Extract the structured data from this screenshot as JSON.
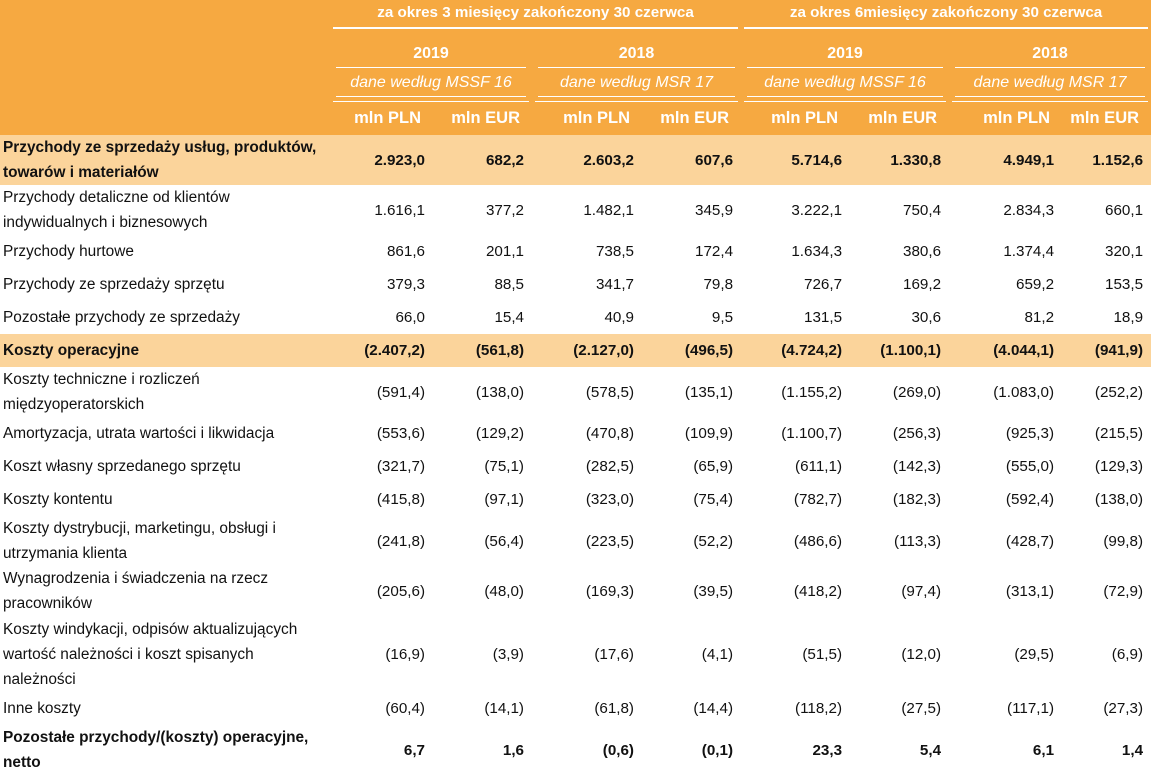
{
  "header": {
    "periods": [
      "za okres 3 miesięcy zakończony 30 czerwca",
      "za okres 6miesięcy zakończony 30 czerwca"
    ],
    "years": [
      {
        "year": "2019",
        "standard": "dane według MSSF 16"
      },
      {
        "year": "2018",
        "standard": "dane według MSR 17"
      },
      {
        "year": "2019",
        "standard": "dane według MSSF 16"
      },
      {
        "year": "2018",
        "standard": "dane według MSR 17"
      }
    ],
    "units": [
      "mln PLN",
      "mln EUR",
      "mln PLN",
      "mln EUR",
      "mln PLN",
      "mln EUR",
      "mln PLN",
      "mln EUR"
    ]
  },
  "rows": [
    {
      "label": "Przychody ze sprzedaży usług, produktów, towarów i materiałów",
      "values": [
        "2.923,0",
        "682,2",
        "2.603,2",
        "607,6",
        "5.714,6",
        "1.330,8",
        "4.949,1",
        "1.152,6"
      ]
    },
    {
      "label": "Przychody detaliczne od klientów indywidualnych i biznesowych",
      "values": [
        "1.616,1",
        "377,2",
        "1.482,1",
        "345,9",
        "3.222,1",
        "750,4",
        "2.834,3",
        "660,1"
      ]
    },
    {
      "label": "Przychody hurtowe",
      "values": [
        "861,6",
        "201,1",
        "738,5",
        "172,4",
        "1.634,3",
        "380,6",
        "1.374,4",
        "320,1"
      ]
    },
    {
      "label": "Przychody ze sprzedaży sprzętu",
      "values": [
        "379,3",
        "88,5",
        "341,7",
        "79,8",
        "726,7",
        "169,2",
        "659,2",
        "153,5"
      ]
    },
    {
      "label": "Pozostałe przychody ze sprzedaży",
      "values": [
        "66,0",
        "15,4",
        "40,9",
        "9,5",
        "131,5",
        "30,6",
        "81,2",
        "18,9"
      ]
    },
    {
      "label": "Koszty operacyjne",
      "values": [
        "(2.407,2)",
        "(561,8)",
        "(2.127,0)",
        "(496,5)",
        "(4.724,2)",
        "(1.100,1)",
        "(4.044,1)",
        "(941,9)"
      ]
    },
    {
      "label": "Koszty techniczne i rozliczeń międzyoperatorskich",
      "values": [
        "(591,4)",
        "(138,0)",
        "(578,5)",
        "(135,1)",
        "(1.155,2)",
        "(269,0)",
        "(1.083,0)",
        "(252,2)"
      ]
    },
    {
      "label": "Amortyzacja, utrata wartości i likwidacja",
      "values": [
        "(553,6)",
        "(129,2)",
        "(470,8)",
        "(109,9)",
        "(1.100,7)",
        "(256,3)",
        "(925,3)",
        "(215,5)"
      ]
    },
    {
      "label": "Koszt własny sprzedanego sprzętu",
      "values": [
        "(321,7)",
        "(75,1)",
        "(282,5)",
        "(65,9)",
        "(611,1)",
        "(142,3)",
        "(555,0)",
        "(129,3)"
      ]
    },
    {
      "label": "Koszty kontentu",
      "values": [
        "(415,8)",
        "(97,1)",
        "(323,0)",
        "(75,4)",
        "(782,7)",
        "(182,3)",
        "(592,4)",
        "(138,0)"
      ]
    },
    {
      "label": "Koszty dystrybucji, marketingu, obsługi i utrzymania klienta",
      "values": [
        "(241,8)",
        "(56,4)",
        "(223,5)",
        "(52,2)",
        "(486,6)",
        "(113,3)",
        "(428,7)",
        "(99,8)"
      ]
    },
    {
      "label": "Wynagrodzenia i świadczenia na rzecz pracowników",
      "values": [
        "(205,6)",
        "(48,0)",
        "(169,3)",
        "(39,5)",
        "(418,2)",
        "(97,4)",
        "(313,1)",
        "(72,9)"
      ]
    },
    {
      "label": "Koszty windykacji, odpisów aktualizujących wartość należności i koszt spisanych należności",
      "values": [
        "(16,9)",
        "(3,9)",
        "(17,6)",
        "(4,1)",
        "(51,5)",
        "(12,0)",
        "(29,5)",
        "(6,9)"
      ]
    },
    {
      "label": "Inne koszty",
      "values": [
        "(60,4)",
        "(14,1)",
        "(61,8)",
        "(14,4)",
        "(118,2)",
        "(27,5)",
        "(117,1)",
        "(27,3)"
      ]
    },
    {
      "label": "Pozostałe przychody/(koszty) operacyjne, netto",
      "values": [
        "6,7",
        "1,6",
        "(0,6)",
        "(0,1)",
        "23,3",
        "5,4",
        "6,1",
        "1,4"
      ]
    }
  ]
}
